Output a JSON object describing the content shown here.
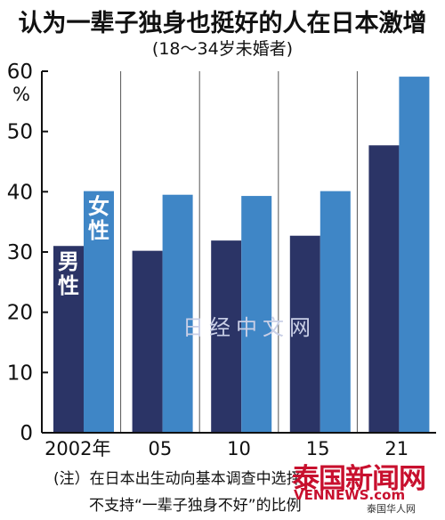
{
  "chart_data": {
    "type": "bar",
    "title": "认为一辈子独身也挺好的人在日本激增",
    "subtitle": "(18～34岁未婚者)",
    "ylabel": "%",
    "ylim": [
      0,
      60
    ],
    "yticks": [
      0,
      10,
      20,
      30,
      40,
      50,
      60
    ],
    "categories": [
      "2002年",
      "05",
      "10",
      "15",
      "21"
    ],
    "series": [
      {
        "name": "男性",
        "color": "#2b3466",
        "values": [
          31,
          30.2,
          31.9,
          32.7,
          47.7
        ]
      },
      {
        "name": "女性",
        "color": "#3f86c6",
        "values": [
          40.1,
          39.5,
          39.3,
          40.1,
          59.1
        ]
      }
    ],
    "grid": "vertical lines between groups",
    "legend": "inside first bars"
  },
  "notes": {
    "line1": "(注）在日本出生动向基本调查中选择",
    "line2": "不支持“一辈子独身不好”的比例"
  },
  "watermarks": {
    "center": "日经中文网",
    "logo_main": "泰国新闻网",
    "logo_url": "VENNEWS.com",
    "logo_sub": "泰国华人网"
  }
}
